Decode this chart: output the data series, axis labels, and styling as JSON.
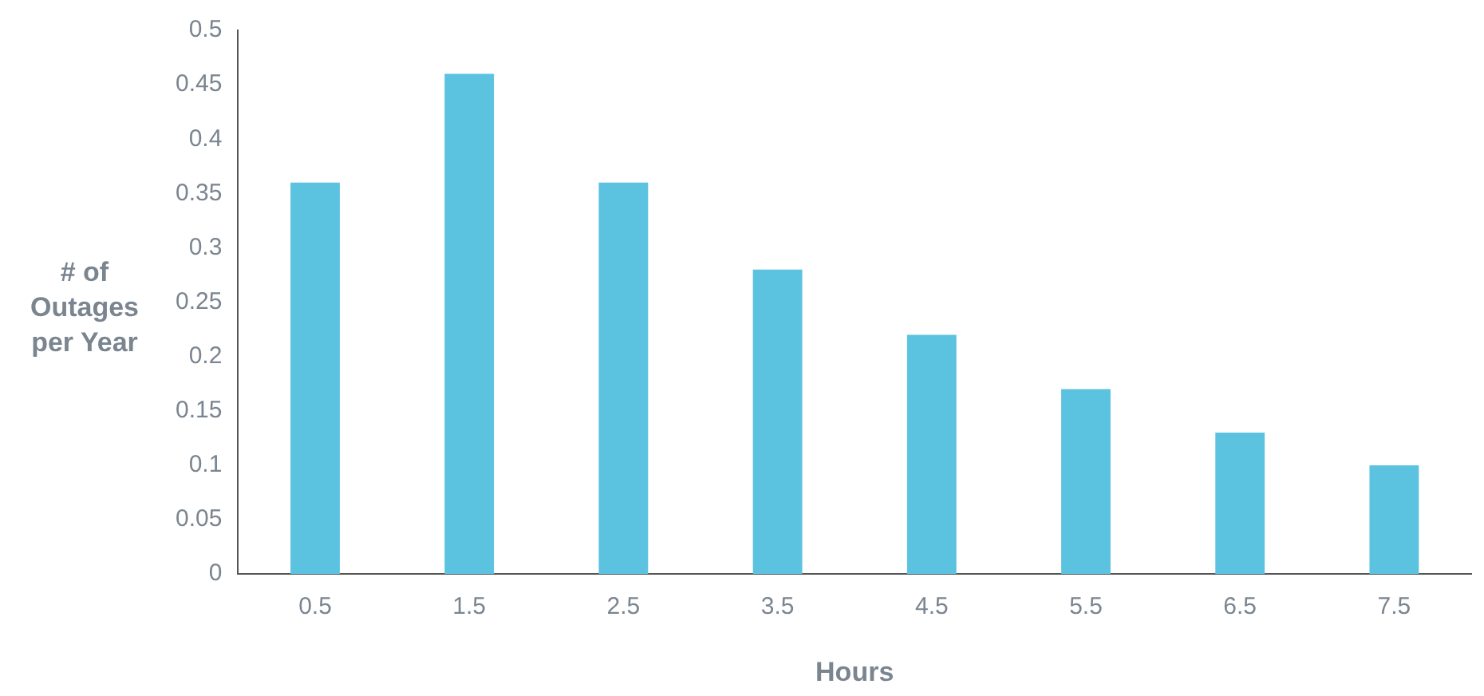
{
  "chart_data": {
    "type": "bar",
    "xlabel": "Hours",
    "ylabel": "# of Outages per Year",
    "categories": [
      "0.5",
      "1.5",
      "2.5",
      "3.5",
      "4.5",
      "5.5",
      "6.5",
      "7.5"
    ],
    "values": [
      0.36,
      0.46,
      0.36,
      0.28,
      0.22,
      0.17,
      0.13,
      0.1
    ],
    "color": "#5bc2e0",
    "ylim": [
      0,
      0.5
    ],
    "yticks": [
      0,
      0.05,
      0.1,
      0.15,
      0.2,
      0.25,
      0.3,
      0.35,
      0.4,
      0.45,
      0.5
    ],
    "grid": false,
    "legend": false
  }
}
